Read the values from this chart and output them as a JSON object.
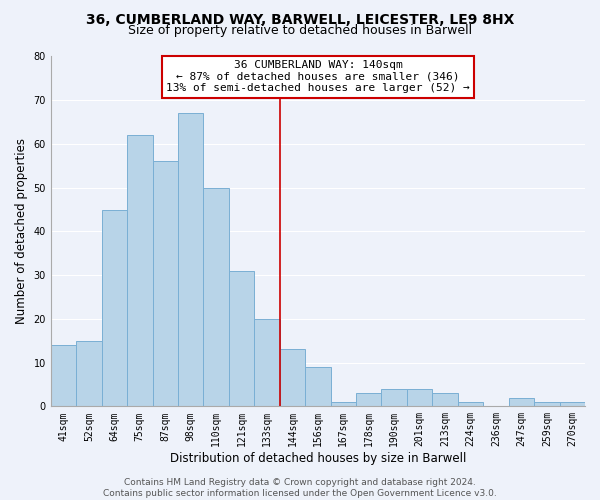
{
  "title_line1": "36, CUMBERLAND WAY, BARWELL, LEICESTER, LE9 8HX",
  "title_line2": "Size of property relative to detached houses in Barwell",
  "xlabel": "Distribution of detached houses by size in Barwell",
  "ylabel": "Number of detached properties",
  "categories": [
    "41sqm",
    "52sqm",
    "64sqm",
    "75sqm",
    "87sqm",
    "98sqm",
    "110sqm",
    "121sqm",
    "133sqm",
    "144sqm",
    "156sqm",
    "167sqm",
    "178sqm",
    "190sqm",
    "201sqm",
    "213sqm",
    "224sqm",
    "236sqm",
    "247sqm",
    "259sqm",
    "270sqm"
  ],
  "values": [
    14,
    15,
    45,
    62,
    56,
    67,
    50,
    31,
    20,
    13,
    9,
    1,
    3,
    4,
    4,
    3,
    1,
    0,
    2,
    1,
    1
  ],
  "bar_color": "#b8d4e8",
  "bar_edge_color": "#7aafd4",
  "vline_x": 8.5,
  "vline_color": "#cc0000",
  "annotation_title": "36 CUMBERLAND WAY: 140sqm",
  "annotation_line1": "← 87% of detached houses are smaller (346)",
  "annotation_line2": "13% of semi-detached houses are larger (52) →",
  "annotation_box_color": "#ffffff",
  "annotation_box_edge_color": "#cc0000",
  "ylim": [
    0,
    80
  ],
  "yticks": [
    0,
    10,
    20,
    30,
    40,
    50,
    60,
    70,
    80
  ],
  "footer_line1": "Contains HM Land Registry data © Crown copyright and database right 2024.",
  "footer_line2": "Contains public sector information licensed under the Open Government Licence v3.0.",
  "bg_color": "#eef2fa",
  "grid_color": "#ffffff",
  "title_fontsize": 10,
  "subtitle_fontsize": 9,
  "axis_label_fontsize": 8.5,
  "tick_fontsize": 7,
  "footer_fontsize": 6.5,
  "annotation_fontsize": 8
}
